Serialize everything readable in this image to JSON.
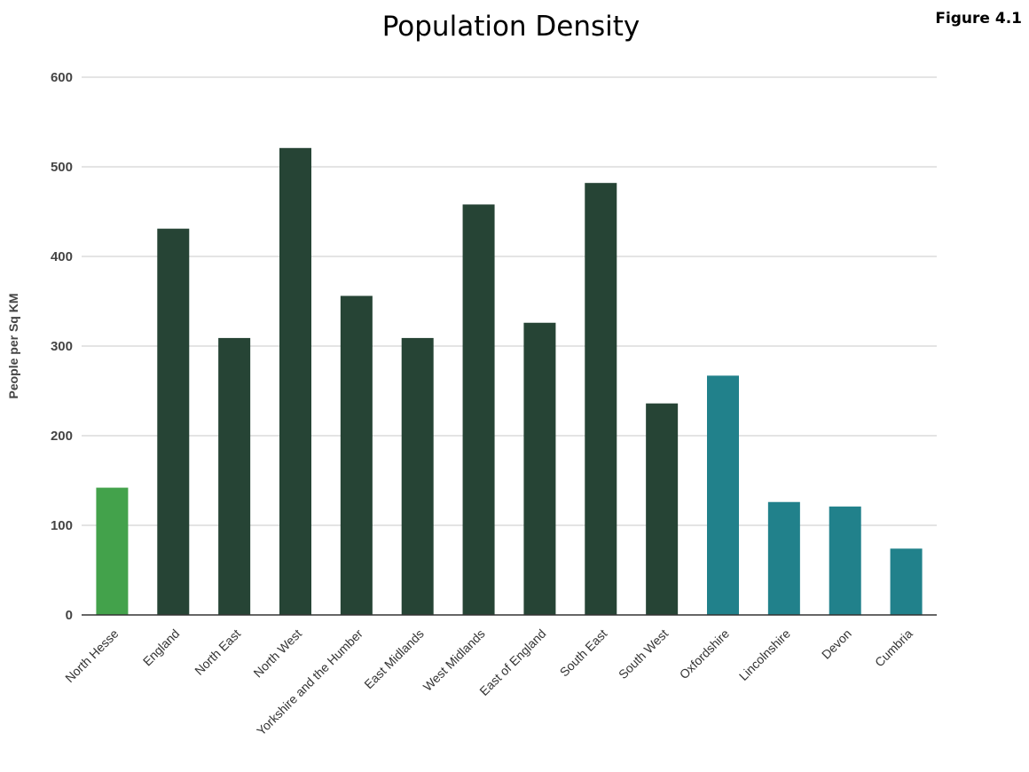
{
  "figure_label": "Figure 4.1",
  "chart_data": {
    "type": "bar",
    "title": "Population Density",
    "xlabel": "",
    "ylabel": "People per Sq KM",
    "ylim": [
      0,
      600
    ],
    "yticks": [
      0,
      100,
      200,
      300,
      400,
      500,
      600
    ],
    "grid": true,
    "categories": [
      "North Hesse",
      "England",
      "North East",
      "North West",
      "Yorkshire and the Humber",
      "East Midlands",
      "West Midlands",
      "East of England",
      "South East",
      "South West",
      "Oxfordshire",
      "Lincolnshire",
      "Devon",
      "Cumbria"
    ],
    "values": [
      142,
      431,
      309,
      521,
      356,
      309,
      458,
      326,
      482,
      236,
      267,
      126,
      121,
      74
    ],
    "colors": [
      "#43a24b",
      "#264435",
      "#264435",
      "#264435",
      "#264435",
      "#264435",
      "#264435",
      "#264435",
      "#264435",
      "#264435",
      "#21818b",
      "#21818b",
      "#21818b",
      "#21818b"
    ]
  }
}
